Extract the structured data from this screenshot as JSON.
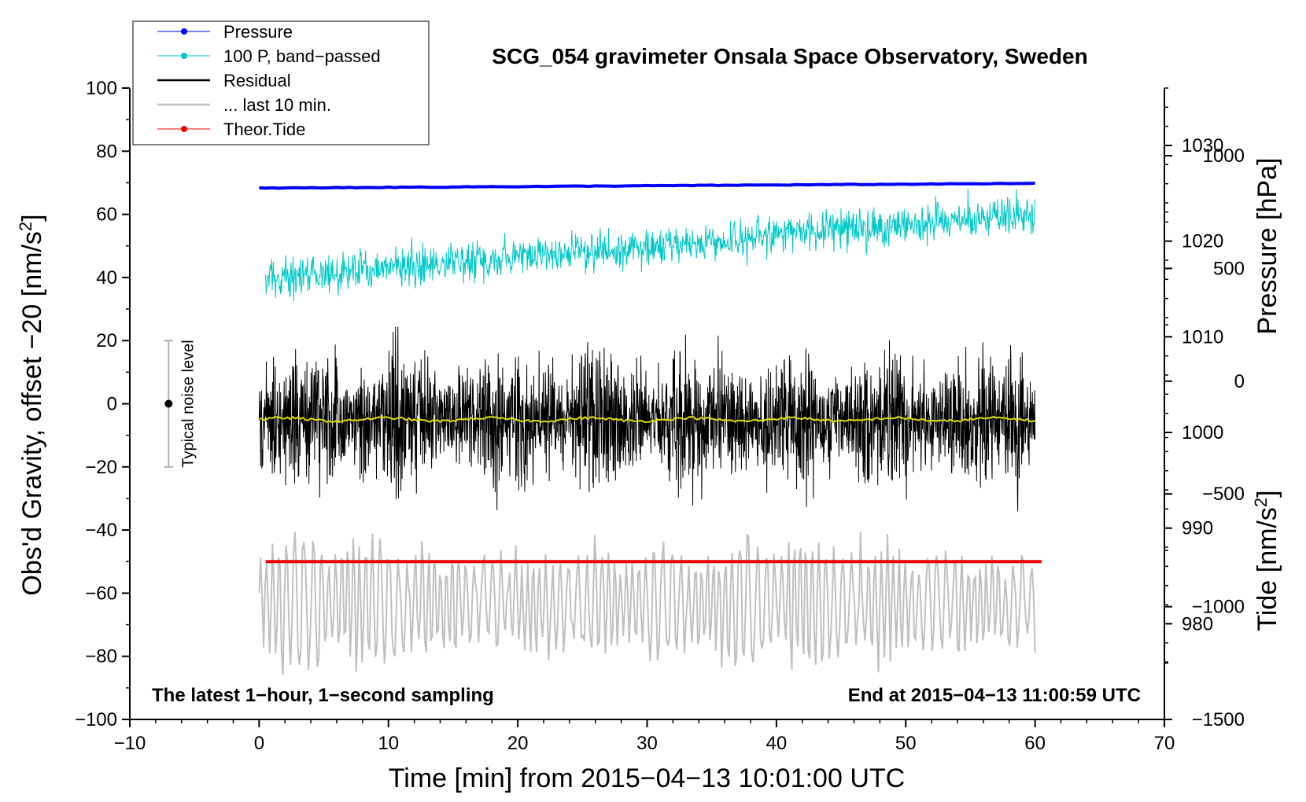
{
  "chart_data": {
    "type": "line",
    "title": "SCG_054 gravimeter Onsala Space Observatory, Sweden",
    "xlabel": "Time [min] from 2015−04−13 10:01:00 UTC",
    "ylabel_left": "Obs'd Gravity, offset −20 [nm/s",
    "ylabel_left_sup": "2",
    "ylabel_left_close": "]",
    "ylabel_right_pressure": "Pressure [hPa]",
    "ylabel_right_tide": "Tide [nm/s",
    "ylabel_right_tide_sup": "2",
    "ylabel_right_tide_close": "]",
    "xlim": [
      -10,
      70
    ],
    "ylim": [
      -100,
      100
    ],
    "x_ticks": [
      {
        "v": -10,
        "label": "−10"
      },
      {
        "v": 0,
        "label": "0"
      },
      {
        "v": 10,
        "label": "10"
      },
      {
        "v": 20,
        "label": "20"
      },
      {
        "v": 30,
        "label": "30"
      },
      {
        "v": 40,
        "label": "40"
      },
      {
        "v": 50,
        "label": "50"
      },
      {
        "v": 60,
        "label": "60"
      },
      {
        "v": 70,
        "label": "70"
      }
    ],
    "y_ticks": [
      {
        "v": 100,
        "label": "100"
      },
      {
        "v": 80,
        "label": "80"
      },
      {
        "v": 60,
        "label": "60"
      },
      {
        "v": 40,
        "label": "40"
      },
      {
        "v": 20,
        "label": "20"
      },
      {
        "v": 0,
        "label": "0"
      },
      {
        "v": -20,
        "label": "−20"
      },
      {
        "v": -40,
        "label": "−40"
      },
      {
        "v": -60,
        "label": "−60"
      },
      {
        "v": -80,
        "label": "−80"
      },
      {
        "v": -100,
        "label": "−100"
      }
    ],
    "pressure_axis": {
      "range_hpa": [
        970,
        1036
      ],
      "ticks": [
        {
          "v": 1030,
          "label": "1030"
        },
        {
          "v": 1020,
          "label": "1020"
        },
        {
          "v": 1010,
          "label": "1010"
        },
        {
          "v": 1000,
          "label": "1000"
        },
        {
          "v": 990,
          "label": "990"
        },
        {
          "v": 980,
          "label": "980"
        }
      ]
    },
    "tide_axis": {
      "range": [
        -1500,
        1300
      ],
      "ticks": [
        {
          "v": 1000,
          "label": "1000"
        },
        {
          "v": 500,
          "label": "500"
        },
        {
          "v": 0,
          "label": "0"
        },
        {
          "v": -500,
          "label": "−500"
        },
        {
          "v": -1000,
          "label": "−1000"
        },
        {
          "v": -1500,
          "label": "−1500"
        }
      ]
    },
    "series": [
      {
        "name": "Pressure",
        "color": "#0000ff",
        "style": "line+dot",
        "start_y": 68.3,
        "end_y": 69.8,
        "x_start": 0,
        "x_end": 60
      },
      {
        "name": "100 P, band−passed",
        "color": "#00c8c8",
        "style": "line+dot",
        "start_y": 40,
        "end_y": 60,
        "x_start": 0.5,
        "x_end": 60
      },
      {
        "name": "Residual",
        "color": "#000000",
        "style": "line",
        "center_y": -5,
        "min_y": -40,
        "max_y": 30,
        "x_start": 0,
        "x_end": 60
      },
      {
        "name": "... last 10 min.",
        "color": "#c0c0c0",
        "style": "line",
        "center_y": -63,
        "min_y": -88,
        "max_y": -37,
        "x_start": 0,
        "x_end": 60
      },
      {
        "name": "Theor.Tide",
        "color": "#ee0000",
        "style": "line+dot",
        "value_y": -50,
        "x_start": 0.5,
        "x_end": 60.5
      },
      {
        "name": "Running mean",
        "color": "#dddd00",
        "style": "line",
        "value_y": -5,
        "x_start": 0,
        "x_end": 60,
        "in_legend": false
      }
    ],
    "legend": {
      "placement": "top-left"
    },
    "noise_bar": {
      "label": "Typical noise level",
      "x": -7,
      "y_low": -20,
      "y_high": 20,
      "y_center": 0
    },
    "annotation_left": "The latest 1−hour, 1−second sampling",
    "annotation_right": "End at 2015−04−13 11:00:59 UTC"
  }
}
